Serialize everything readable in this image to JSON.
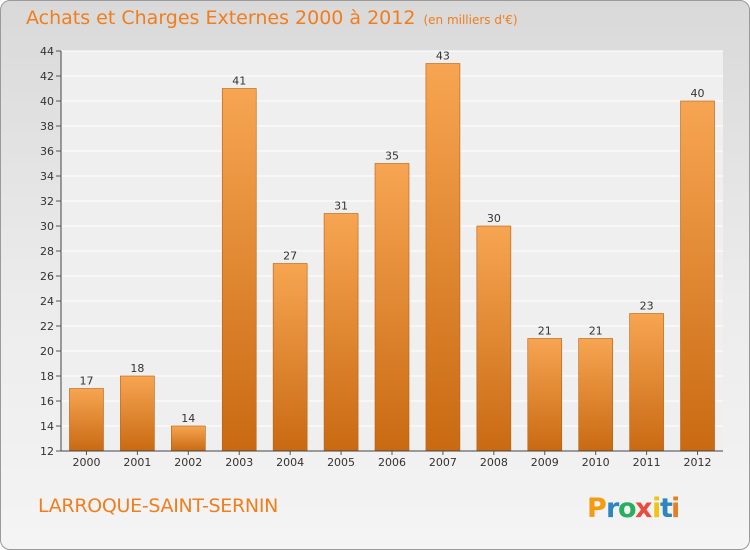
{
  "header": {
    "title": "Achats et Charges Externes 2000 à 2012",
    "unit": "(en milliers d'€)"
  },
  "footer": {
    "commune": "LARROQUE-SAINT-SERNIN",
    "logo_text": "Proxiti"
  },
  "colors": {
    "accent": "#f07e1d",
    "bar_light": "#f7a552",
    "bar_dark": "#c96a12",
    "logo_letters": [
      "#f39c12",
      "#2e86c1",
      "#27ae60",
      "#e74c3c",
      "#f1c40f",
      "#2e86c1",
      "#e67e22"
    ]
  },
  "chart_data": {
    "type": "bar",
    "title": "Achats et Charges Externes 2000 à 2012",
    "subtitle": "(en milliers d'€)",
    "categories": [
      "2000",
      "2001",
      "2002",
      "2003",
      "2004",
      "2005",
      "2006",
      "2007",
      "2008",
      "2009",
      "2010",
      "2011",
      "2012"
    ],
    "values": [
      17,
      18,
      14,
      41,
      27,
      31,
      35,
      43,
      30,
      21,
      21,
      23,
      40
    ],
    "ylim": [
      12,
      44
    ],
    "yticks": [
      12,
      14,
      16,
      18,
      20,
      22,
      24,
      26,
      28,
      30,
      32,
      34,
      36,
      38,
      40,
      42,
      44
    ],
    "grid": true,
    "data_labels": true
  }
}
